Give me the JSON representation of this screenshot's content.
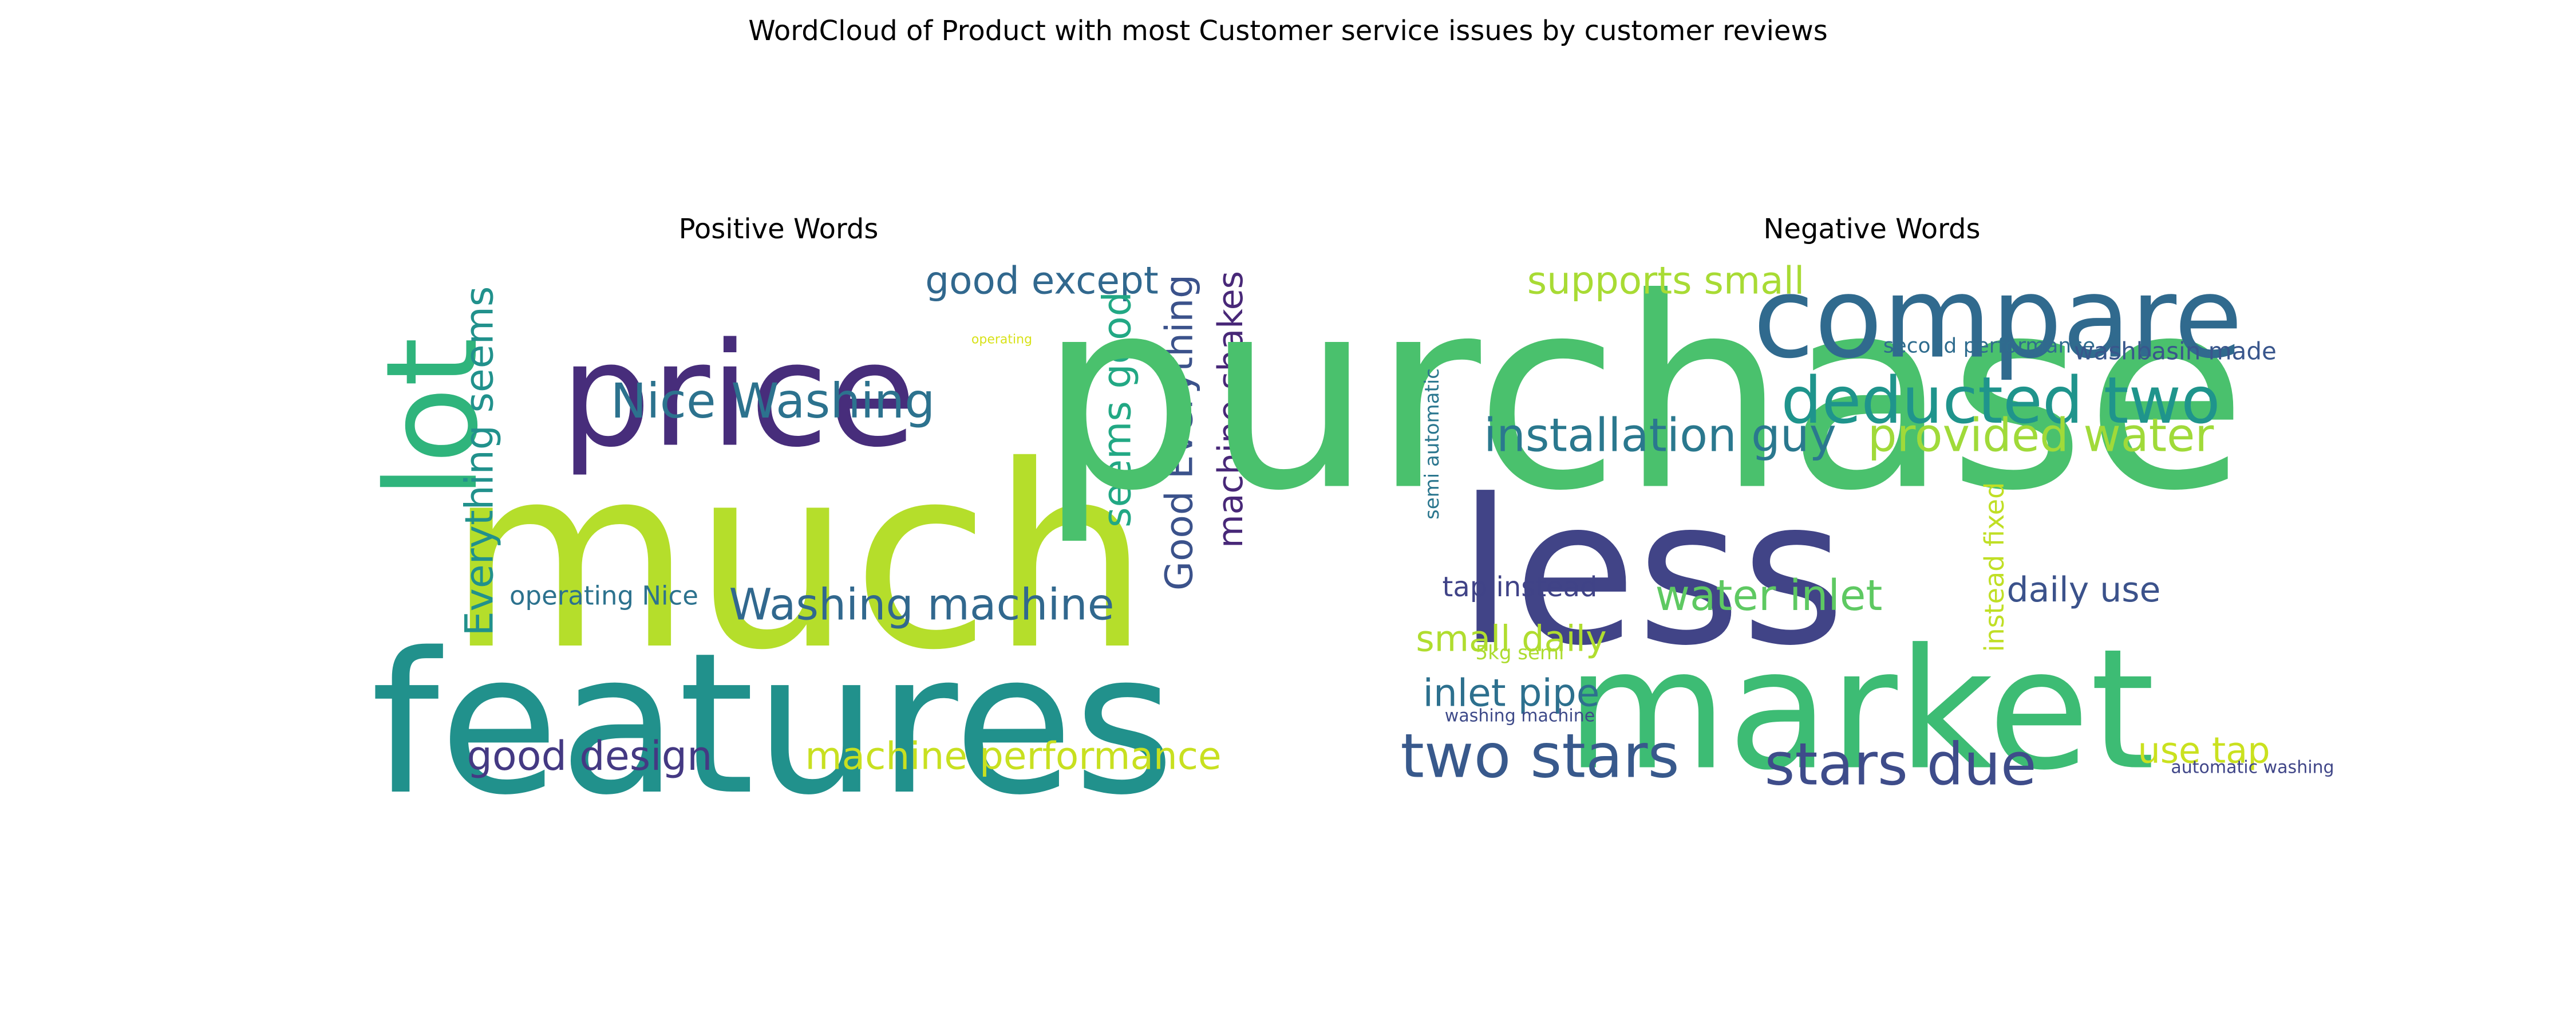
{
  "figure": {
    "title": "WordCloud of Product with most Customer service issues by customer reviews"
  },
  "chart_data": [
    {
      "type": "wordcloud",
      "title": "Positive Words",
      "words": [
        {
          "text": "much",
          "color": "#b5de2b"
        },
        {
          "text": "features",
          "color": "#21918c"
        },
        {
          "text": "price",
          "color": "#472d7b"
        },
        {
          "text": "lot",
          "color": "#2fb47c"
        },
        {
          "text": "Nice Washing",
          "color": "#2c728e"
        },
        {
          "text": "Washing machine",
          "color": "#31688e"
        },
        {
          "text": "Everything seems",
          "color": "#21918c"
        },
        {
          "text": "good except",
          "color": "#31688e"
        },
        {
          "text": "seems good",
          "color": "#22a884"
        },
        {
          "text": "Good Everything",
          "color": "#3b528b"
        },
        {
          "text": "machine shakes",
          "color": "#482878"
        },
        {
          "text": "good design",
          "color": "#443983"
        },
        {
          "text": "machine performance",
          "color": "#c8e020"
        },
        {
          "text": "operating Nice",
          "color": "#2c728e"
        },
        {
          "text": "operating",
          "color": "#d8e219"
        }
      ]
    },
    {
      "type": "wordcloud",
      "title": "Negative Words",
      "words": [
        {
          "text": "purchase",
          "color": "#4ac16d"
        },
        {
          "text": "market",
          "color": "#3dbc74"
        },
        {
          "text": "less",
          "color": "#414487"
        },
        {
          "text": "compare",
          "color": "#306a8e"
        },
        {
          "text": "deducted two",
          "color": "#1f948c"
        },
        {
          "text": "installation guy",
          "color": "#2a788e"
        },
        {
          "text": "provided water",
          "color": "#a0da39"
        },
        {
          "text": "supports small",
          "color": "#a8db34"
        },
        {
          "text": "two stars",
          "color": "#38598c"
        },
        {
          "text": "stars due",
          "color": "#3e4c8a"
        },
        {
          "text": "water inlet",
          "color": "#5ec962"
        },
        {
          "text": "daily use",
          "color": "#3b528b"
        },
        {
          "text": "inlet pipe",
          "color": "#2d708e"
        },
        {
          "text": "small daily",
          "color": "#b0dd2f"
        },
        {
          "text": "use tap",
          "color": "#cae11f"
        },
        {
          "text": "tap instead",
          "color": "#404387"
        },
        {
          "text": "instead fixed",
          "color": "#c0df25"
        },
        {
          "text": "second performance",
          "color": "#2f6c8e"
        },
        {
          "text": "washbasin made",
          "color": "#39568c"
        },
        {
          "text": "semi automatic",
          "color": "#2a768e"
        },
        {
          "text": "5kg semi",
          "color": "#addc30"
        },
        {
          "text": "washing machine",
          "color": "#3e4a89"
        },
        {
          "text": "automatic washing",
          "color": "#404688"
        }
      ]
    }
  ]
}
